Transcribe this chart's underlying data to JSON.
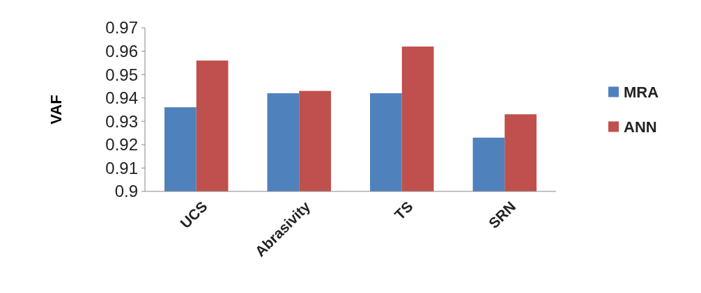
{
  "chart_data": {
    "type": "bar",
    "ylabel": "VAF",
    "categories": [
      "UCS",
      "Abrasivity",
      "TS",
      "SRN"
    ],
    "series": [
      {
        "name": "MRA",
        "color": "#4f81bd",
        "values": [
          0.936,
          0.942,
          0.942,
          0.923
        ]
      },
      {
        "name": "ANN",
        "color": "#c0504d",
        "values": [
          0.956,
          0.943,
          0.962,
          0.933
        ]
      }
    ],
    "ylim": [
      0.9,
      0.97
    ],
    "yticks": [
      0.9,
      0.91,
      0.92,
      0.93,
      0.94,
      0.95,
      0.96,
      0.97
    ],
    "grid": false,
    "legend": "right"
  }
}
